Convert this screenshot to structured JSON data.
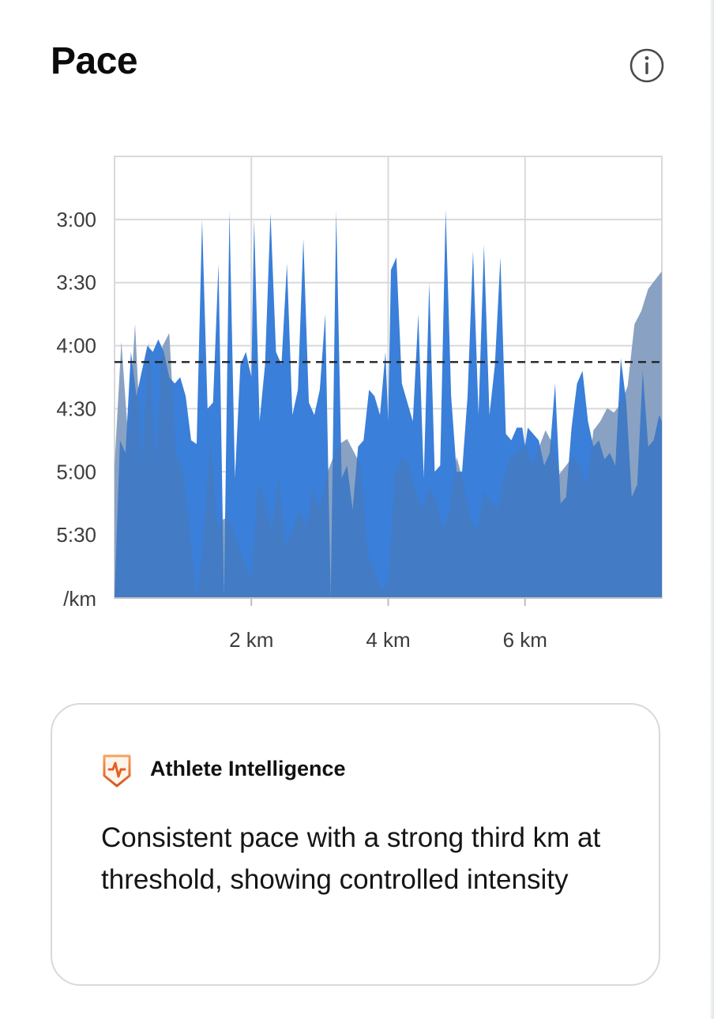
{
  "header": {
    "title": "Pace",
    "info_icon": "info-circle-icon"
  },
  "chart_data": {
    "type": "area",
    "title": "Pace",
    "xlabel": "",
    "ylabel": "/km",
    "y_unit_label": "/km",
    "y_axis_inverted": true,
    "xlim_km": [
      0,
      8.0
    ],
    "ylim_min_per_km": [
      2.5,
      6.0
    ],
    "y_ticks": [
      {
        "label": "3:00",
        "value": 3.0
      },
      {
        "label": "3:30",
        "value": 3.5
      },
      {
        "label": "4:00",
        "value": 4.0
      },
      {
        "label": "4:30",
        "value": 4.5
      },
      {
        "label": "5:00",
        "value": 5.0
      },
      {
        "label": "5:30",
        "value": 5.5
      }
    ],
    "x_ticks": [
      {
        "label": "2 km",
        "value": 2
      },
      {
        "label": "4 km",
        "value": 4
      },
      {
        "label": "6 km",
        "value": 6
      }
    ],
    "grid": true,
    "reference_line": {
      "style": "dashed",
      "value": 4.13,
      "label": ""
    },
    "colors": {
      "pace": "#3a7fd9",
      "elevation": "#d6d6d6",
      "overlap": "#4a78b4",
      "grid": "#d9d9d9",
      "reference": "#222222"
    },
    "series": [
      {
        "id": "pace",
        "x": [
          0.0,
          0.08,
          0.16,
          0.24,
          0.32,
          0.4,
          0.48,
          0.56,
          0.64,
          0.72,
          0.8,
          0.88,
          0.96,
          1.04,
          1.12,
          1.2,
          1.28,
          1.36,
          1.44,
          1.52,
          1.6,
          1.68,
          1.76,
          1.84,
          1.92,
          2.0,
          2.04,
          2.12,
          2.2,
          2.28,
          2.36,
          2.44,
          2.52,
          2.6,
          2.68,
          2.76,
          2.84,
          2.92,
          3.0,
          3.08,
          3.16,
          3.24,
          3.32,
          3.4,
          3.48,
          3.56,
          3.64,
          3.72,
          3.8,
          3.88,
          3.96,
          4.0,
          4.04,
          4.12,
          4.2,
          4.28,
          4.36,
          4.44,
          4.52,
          4.6,
          4.68,
          4.76,
          4.84,
          4.92,
          5.0,
          5.08,
          5.16,
          5.24,
          5.32,
          5.4,
          5.48,
          5.56,
          5.64,
          5.72,
          5.8,
          5.88,
          5.96,
          6.0,
          6.04,
          6.12,
          6.2,
          6.28,
          6.36,
          6.44,
          6.52,
          6.6,
          6.68,
          6.76,
          6.84,
          6.92,
          7.0,
          7.08,
          7.16,
          7.24,
          7.32,
          7.4,
          7.48,
          7.56,
          7.64,
          7.72,
          7.8,
          7.88,
          7.96,
          8.0
        ],
        "values": [
          6.0,
          4.75,
          4.85,
          4.05,
          4.4,
          4.2,
          4.0,
          4.05,
          3.95,
          4.05,
          4.25,
          4.3,
          4.25,
          4.4,
          4.75,
          4.78,
          3.0,
          4.5,
          4.45,
          3.35,
          6.0,
          2.93,
          5.05,
          4.15,
          4.05,
          4.25,
          3.0,
          4.6,
          4.15,
          2.95,
          4.05,
          4.15,
          3.35,
          4.55,
          4.35,
          3.15,
          4.45,
          4.55,
          4.35,
          3.75,
          6.0,
          2.93,
          5.05,
          4.95,
          5.3,
          4.8,
          4.75,
          4.35,
          4.4,
          4.55,
          4.05,
          4.6,
          3.4,
          3.3,
          4.3,
          4.45,
          4.6,
          3.75,
          5.05,
          3.5,
          5.0,
          4.95,
          2.92,
          4.4,
          5.0,
          5.0,
          4.4,
          3.25,
          4.55,
          3.2,
          4.55,
          4.15,
          3.3,
          4.7,
          4.75,
          4.65,
          4.65,
          4.8,
          4.65,
          4.7,
          4.75,
          4.95,
          4.85,
          4.3,
          5.25,
          5.2,
          4.65,
          4.3,
          4.2,
          4.6,
          4.8,
          4.75,
          4.9,
          4.85,
          4.95,
          4.1,
          4.45,
          5.2,
          5.1,
          4.2,
          4.8,
          4.75,
          4.55,
          4.6
        ]
      },
      {
        "id": "elevation",
        "x": [
          0.0,
          0.1,
          0.2,
          0.3,
          0.4,
          0.5,
          0.6,
          0.7,
          0.8,
          0.9,
          1.0,
          1.1,
          1.2,
          1.3,
          1.4,
          1.5,
          1.6,
          1.7,
          1.8,
          1.9,
          2.0,
          2.1,
          2.2,
          2.3,
          2.4,
          2.5,
          2.6,
          2.7,
          2.8,
          2.9,
          3.0,
          3.1,
          3.2,
          3.3,
          3.4,
          3.5,
          3.6,
          3.7,
          3.8,
          3.9,
          4.0,
          4.1,
          4.2,
          4.3,
          4.4,
          4.5,
          4.6,
          4.7,
          4.8,
          4.9,
          5.0,
          5.1,
          5.2,
          5.3,
          5.4,
          5.5,
          5.6,
          5.7,
          5.8,
          5.9,
          6.0,
          6.1,
          6.2,
          6.3,
          6.4,
          6.5,
          6.6,
          6.7,
          6.8,
          6.9,
          7.0,
          7.1,
          7.2,
          7.3,
          7.4,
          7.5,
          7.6,
          7.7,
          7.8,
          7.9,
          8.0
        ],
        "values": [
          30,
          58,
          36,
          62,
          30,
          58,
          30,
          57,
          60,
          32,
          29,
          15,
          0,
          13,
          36,
          16,
          18,
          17,
          12,
          8,
          4,
          26,
          22,
          15,
          28,
          12,
          15,
          20,
          16,
          25,
          20,
          28,
          32,
          35,
          36,
          33,
          30,
          10,
          6,
          2,
          3,
          28,
          32,
          30,
          24,
          20,
          25,
          22,
          15,
          20,
          32,
          26,
          18,
          15,
          24,
          22,
          20,
          28,
          32,
          33,
          35,
          30,
          34,
          38,
          35,
          28,
          30,
          32,
          30,
          25,
          38,
          40,
          43,
          42,
          44,
          48,
          62,
          65,
          70,
          72,
          74
        ]
      }
    ]
  },
  "insight": {
    "badge_icon": "strava-athlete-intelligence-badge-icon",
    "title": "Athlete Intelligence",
    "text": "Consistent pace with a strong third km at threshold, showing controlled intensity"
  }
}
